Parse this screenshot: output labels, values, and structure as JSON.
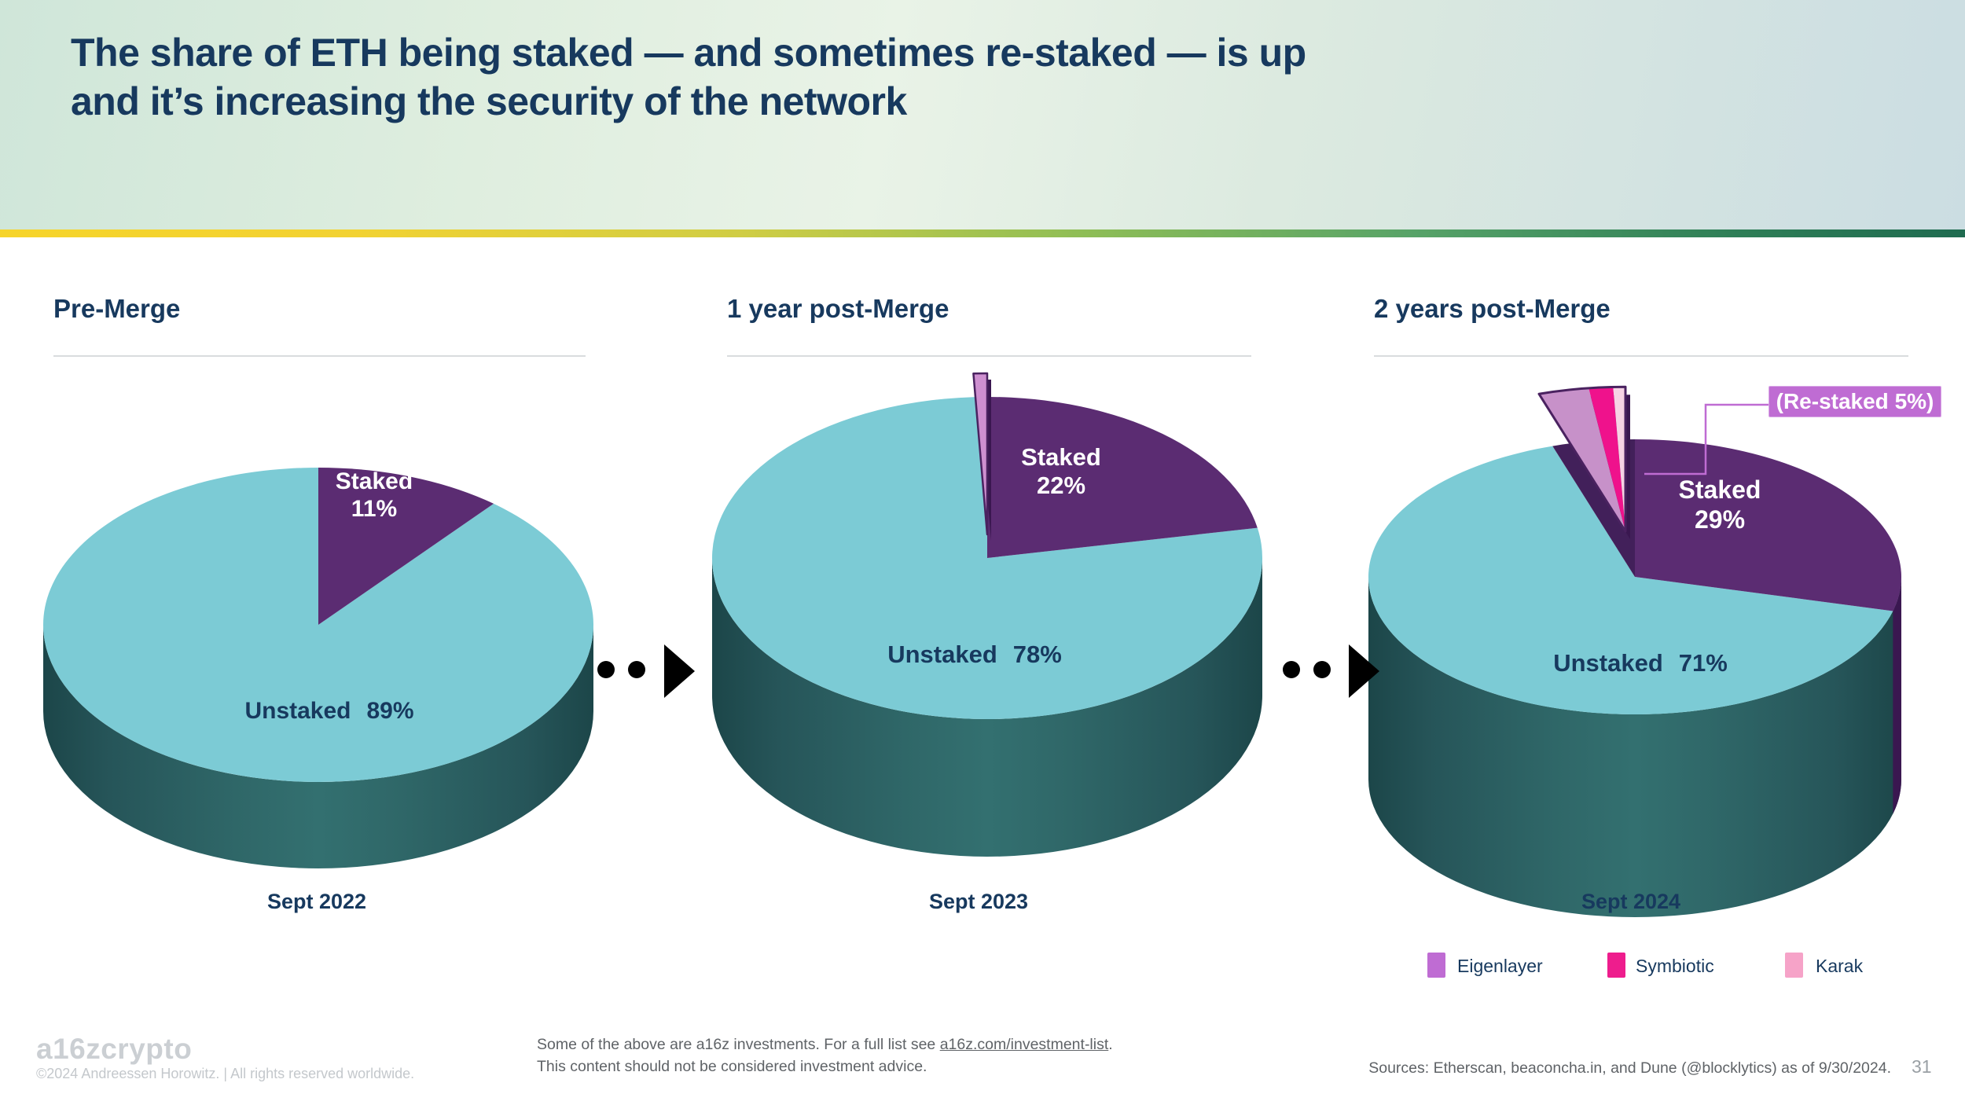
{
  "slide": {
    "title_line1": "The share of ETH being staked — and sometimes re-staked — is up",
    "title_line2": "and it’s increasing the security of the network"
  },
  "palette": {
    "navy": "#17395e",
    "teal_top": "#7ccbd5",
    "teal_wall_edge": "#1c4649",
    "teal_wall_mid": "#337070",
    "purple": "#5b2c72",
    "purple_wall": "#3a1750",
    "notch": "#42205a",
    "sliver_fill": "#ce8fd0",
    "sliver_outline": "#4a2260",
    "orchid": "#bf6cd3",
    "magenta": "#ee1d8d",
    "pink": "#f6a3c8",
    "arrow_black": "#000000"
  },
  "chart_data": [
    {
      "type": "pie",
      "heading": "Pre-Merge",
      "date": "Sept 2022",
      "slices": [
        {
          "label": "Staked",
          "value": 11,
          "pct": "11%",
          "color": "#5b2c72"
        },
        {
          "label": "Unstaked",
          "value": 89,
          "pct": "89%",
          "color": "#7ccbd5"
        }
      ]
    },
    {
      "type": "pie",
      "heading": "1 year post-Merge",
      "date": "Sept 2023",
      "slices": [
        {
          "label": "Staked",
          "value": 22,
          "pct": "22%",
          "color": "#5b2c72"
        },
        {
          "label": "Unstaked",
          "value": 78,
          "pct": "78%",
          "color": "#7ccbd5"
        }
      ],
      "restaked_sliver": {
        "value": 0.8,
        "color": "#ce8fd0"
      }
    },
    {
      "type": "pie",
      "heading": "2 years post-Merge",
      "date": "Sept 2024",
      "slices": [
        {
          "label": "Staked",
          "value": 29,
          "pct": "29%",
          "color": "#5b2c72"
        },
        {
          "label": "Unstaked",
          "value": 71,
          "pct": "71%",
          "color": "#7ccbd5"
        }
      ],
      "restaked": {
        "value": 5,
        "label": "(Re-staked 5%)",
        "components": [
          {
            "name": "Eigenlayer",
            "value": 2.9,
            "color": "#c791c9"
          },
          {
            "name": "Symbiotic",
            "value": 1.4,
            "color": "#ef128c"
          },
          {
            "name": "Karak",
            "value": 0.7,
            "color": "#f6d3e4"
          }
        ]
      }
    }
  ],
  "legend": {
    "items": [
      {
        "label": "Eigenlayer",
        "color": "#bf6cd3"
      },
      {
        "label": "Symbiotic",
        "color": "#ee1d8d"
      },
      {
        "label": "Karak",
        "color": "#f6a3c8"
      }
    ]
  },
  "footer": {
    "logo": "a16zcrypto",
    "copyright": "©2024 Andreessen Horowitz.  |  All rights reserved worldwide.",
    "disclaimer_prefix": "Some of the above are a16z investments. For a full list see ",
    "disclaimer_link": "a16z.com/investment-list",
    "disclaimer_suffix": ".",
    "disclaimer_line2": "This content should not be considered investment advice.",
    "sources": "Sources: Etherscan, beaconcha.in, and Dune (@blocklytics) as of 9/30/2024.",
    "page_number": "31"
  }
}
